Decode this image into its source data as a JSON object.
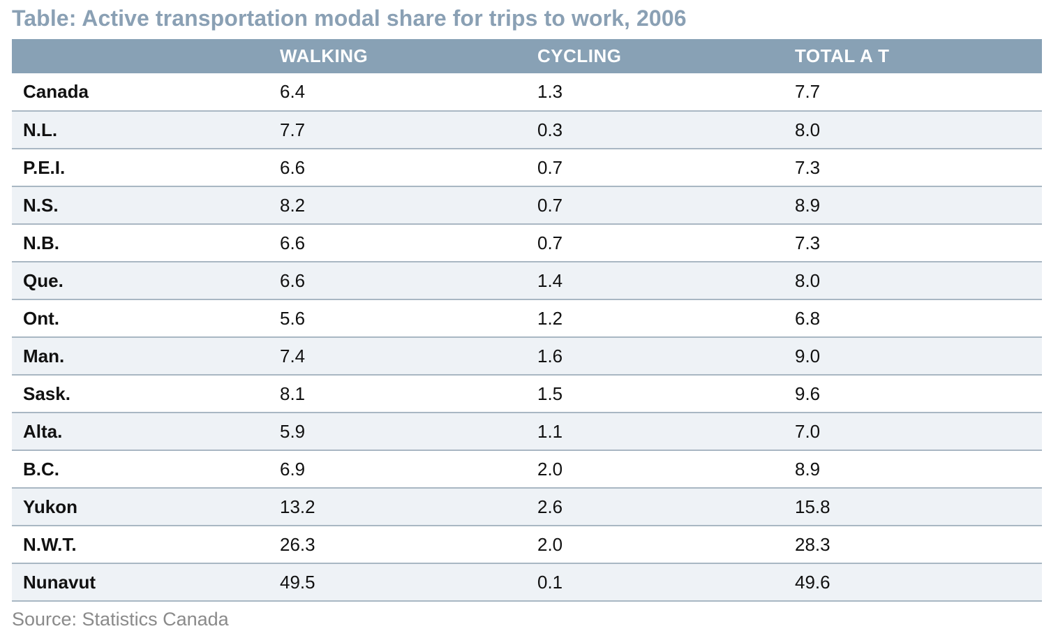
{
  "title": "Table: Active transportation modal share for trips to work, 2006",
  "source": "Source: Statistics Canada",
  "chart_data": {
    "type": "table",
    "title": "Table: Active transportation modal share for trips to work, 2006",
    "columns": [
      "",
      "WALKING",
      "CYCLING",
      "TOTAL A T"
    ],
    "rows": [
      {
        "region": "Canada",
        "walking": "6.4",
        "cycling": "1.3",
        "total": "7.7"
      },
      {
        "region": "N.L.",
        "walking": "7.7",
        "cycling": "0.3",
        "total": "8.0"
      },
      {
        "region": "P.E.I.",
        "walking": "6.6",
        "cycling": "0.7",
        "total": "7.3"
      },
      {
        "region": "N.S.",
        "walking": "8.2",
        "cycling": "0.7",
        "total": "8.9"
      },
      {
        "region": "N.B.",
        "walking": "6.6",
        "cycling": "0.7",
        "total": "7.3"
      },
      {
        "region": "Que.",
        "walking": "6.6",
        "cycling": "1.4",
        "total": "8.0"
      },
      {
        "region": "Ont.",
        "walking": "5.6",
        "cycling": "1.2",
        "total": "6.8"
      },
      {
        "region": "Man.",
        "walking": "7.4",
        "cycling": "1.6",
        "total": "9.0"
      },
      {
        "region": "Sask.",
        "walking": "8.1",
        "cycling": "1.5",
        "total": "9.6"
      },
      {
        "region": "Alta.",
        "walking": "5.9",
        "cycling": "1.1",
        "total": "7.0"
      },
      {
        "region": "B.C.",
        "walking": "6.9",
        "cycling": "2.0",
        "total": "8.9"
      },
      {
        "region": "Yukon",
        "walking": "13.2",
        "cycling": "2.6",
        "total": "15.8"
      },
      {
        "region": "N.W.T.",
        "walking": "26.3",
        "cycling": "2.0",
        "total": "28.3"
      },
      {
        "region": "Nunavut",
        "walking": "49.5",
        "cycling": "0.1",
        "total": "49.6"
      }
    ],
    "colors": {
      "header_bg": "#88a1b5",
      "title": "#8aa0b4",
      "alt_row": "#eef2f6",
      "row_rule": "#a9b7c3"
    }
  }
}
